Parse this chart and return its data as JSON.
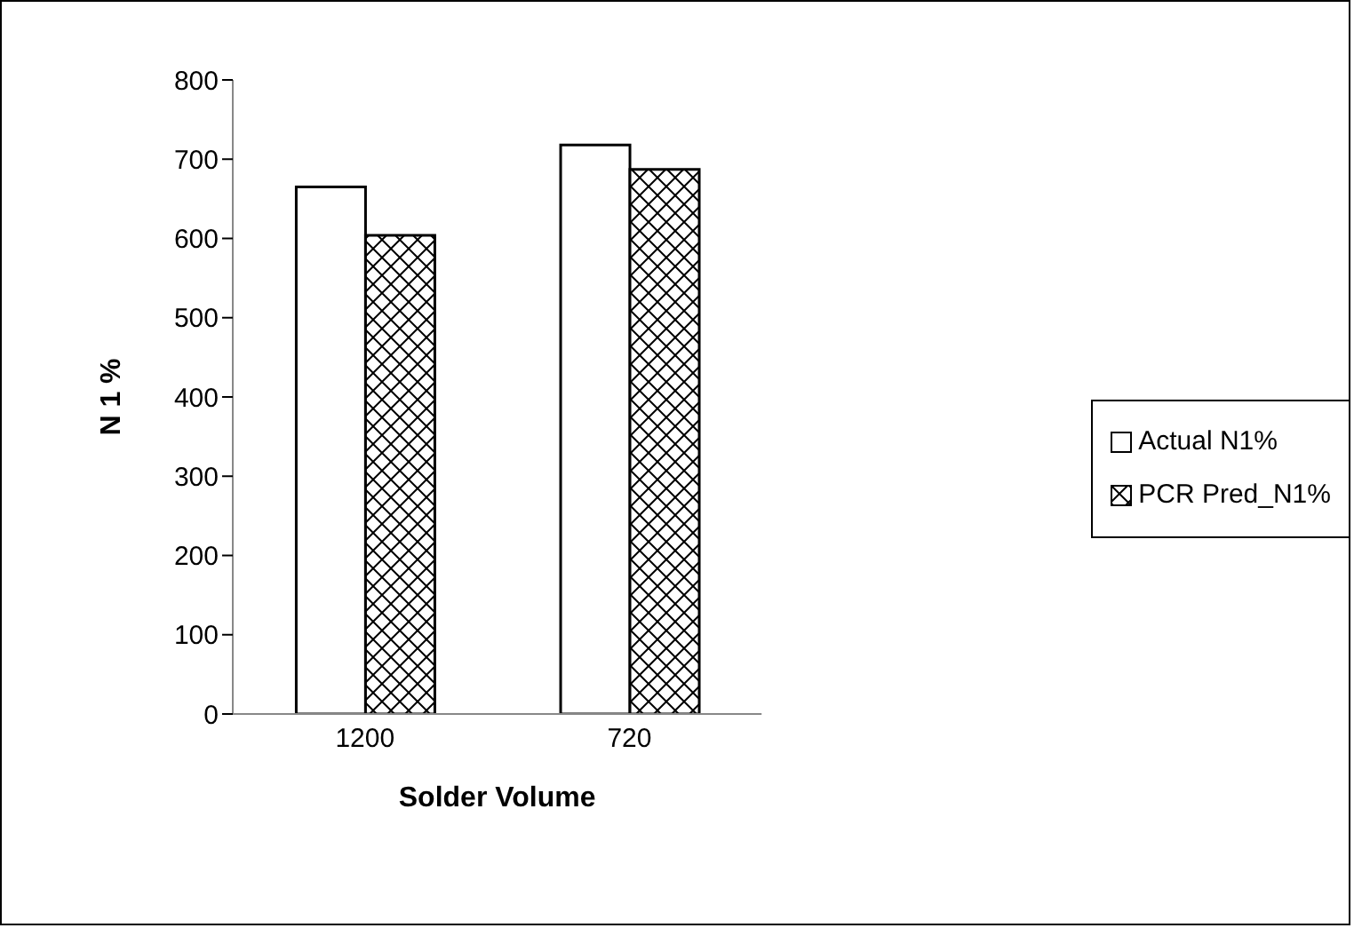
{
  "chart_data": {
    "type": "bar",
    "xlabel": "Solder Volume",
    "ylabel": "N 1 %",
    "categories": [
      "1200",
      "720"
    ],
    "series": [
      {
        "name": "Actual N1%",
        "color": "#ffffff",
        "values": [
          665,
          718
        ]
      },
      {
        "name": "PCR Pred_N1%",
        "color": "#000000",
        "values": [
          604,
          687
        ]
      }
    ],
    "ylim": [
      0,
      800
    ],
    "yticks": [
      0,
      100,
      200,
      300,
      400,
      500,
      600,
      700,
      800
    ],
    "grid": false,
    "legend": "right"
  }
}
